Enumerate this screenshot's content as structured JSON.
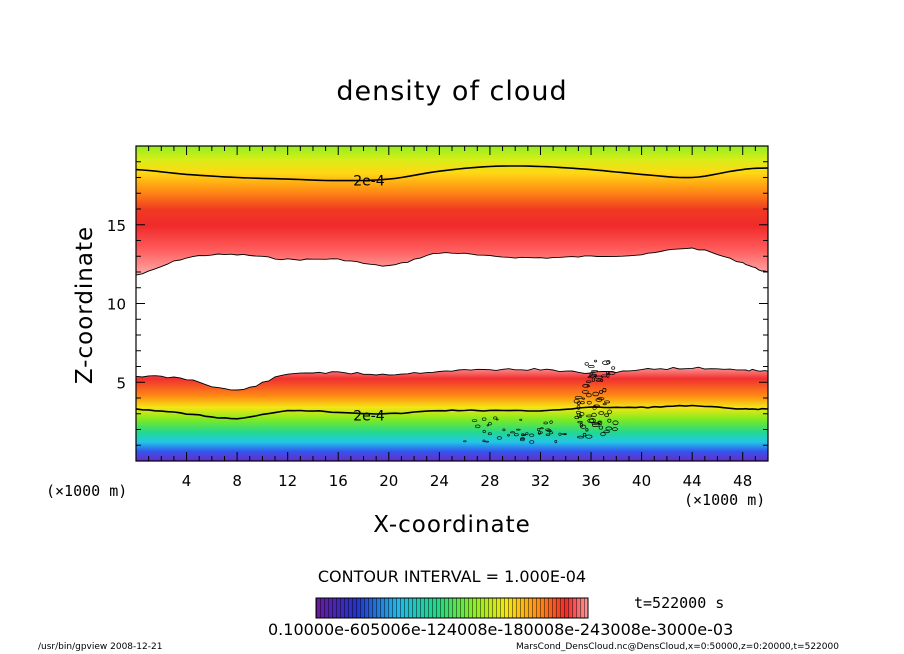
{
  "chart_data": {
    "type": "heatmap",
    "title": "density of cloud",
    "xlabel": "X-coordinate",
    "ylabel": "Z-coordinate",
    "x_unit_left": "(×1000 m)",
    "x_unit_right": "(×1000 m)",
    "xlim": [
      0,
      50
    ],
    "ylim": [
      0,
      20
    ],
    "xticks": [
      4,
      8,
      12,
      16,
      20,
      24,
      28,
      32,
      36,
      40,
      44,
      48
    ],
    "yticks": [
      5,
      10,
      15
    ],
    "contour_labels": [
      {
        "text": "2e-4",
        "x": 17.5,
        "z": 17.8
      },
      {
        "text": "2e-4",
        "x": 17.5,
        "z": 2.9
      }
    ],
    "upper_band": {
      "x": [
        0,
        4,
        8,
        12,
        16,
        20,
        24,
        28,
        32,
        36,
        40,
        44,
        48,
        50
      ],
      "top_z": [
        19.5,
        19.5,
        19.5,
        19.5,
        19.5,
        19.5,
        19.5,
        19.5,
        19.5,
        19.5,
        19.5,
        19.5,
        19.5,
        19.5
      ],
      "bottom_z": [
        11.8,
        12.9,
        13.1,
        12.8,
        12.8,
        12.4,
        13.2,
        13.0,
        12.9,
        13.0,
        13.1,
        13.5,
        12.6,
        12.0
      ],
      "contour_2e4_z": [
        18.5,
        18.2,
        18.0,
        17.9,
        17.8,
        17.9,
        18.4,
        18.7,
        18.7,
        18.5,
        18.2,
        18.0,
        18.5,
        18.6
      ],
      "core_z": [
        14.3,
        14.6,
        14.8,
        14.6,
        14.6,
        14.4,
        15.1,
        15.8,
        16.0,
        15.8,
        15.4,
        14.9,
        14.3,
        14.0
      ]
    },
    "lower_band": {
      "x": [
        0,
        4,
        8,
        12,
        16,
        20,
        24,
        28,
        32,
        36,
        40,
        44,
        48,
        50
      ],
      "top_z": [
        5.4,
        5.2,
        4.5,
        5.5,
        5.6,
        5.5,
        5.7,
        5.8,
        5.8,
        5.6,
        5.8,
        5.9,
        5.8,
        5.7
      ],
      "contour_2e4_z": [
        3.3,
        3.0,
        2.7,
        3.2,
        3.1,
        3.0,
        3.2,
        3.2,
        3.2,
        3.4,
        3.4,
        3.5,
        3.3,
        3.3
      ],
      "bottom_z": [
        0.9,
        0.8,
        0.5,
        0.8,
        0.8,
        0.7,
        0.8,
        0.7,
        0.8,
        0.8,
        0.8,
        0.8,
        0.8,
        0.8
      ]
    },
    "colorbar": {
      "colormap": "rainbow",
      "tick_labels": "0.10000e-605006e-124008e-180008e-243008e-3000e-03",
      "min": 0.0001,
      "max": 0.001
    },
    "contour_interval": "CONTOUR INTERVAL = 1.000E-04",
    "time_label": "t=522000 s"
  },
  "footer": {
    "left": "/usr/bin/gpview   2008-12-21",
    "right": "MarsCond_DensCloud.nc@DensCloud,x=0:50000,z=0:20000,t=522000"
  },
  "colors": {
    "outer_green": "#88ee22",
    "yellow": "#f5e614",
    "orange": "#ff8a10",
    "red": "#ee2222",
    "inner_red": "#ff5555",
    "cyan": "#22c8e6",
    "blue": "#3355ee",
    "purple": "#7722bb"
  }
}
